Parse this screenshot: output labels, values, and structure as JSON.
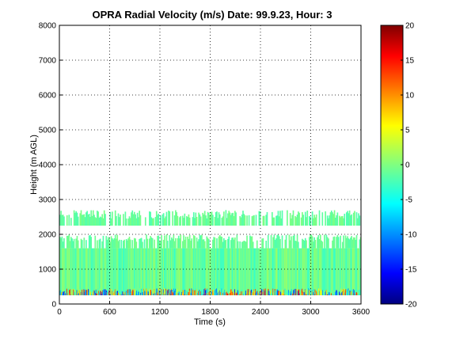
{
  "chart_data": {
    "type": "heatmap",
    "title": "OPRA Radial Velocity (m/s)  Date: 99.9.23, Hour: 3",
    "xlabel": "Time (s)",
    "ylabel": "Height (m AGL)",
    "xlim": [
      0,
      3600
    ],
    "ylim": [
      0,
      8000
    ],
    "xticks": [
      "0",
      "600",
      "1200",
      "1800",
      "2400",
      "3000",
      "3600"
    ],
    "yticks": [
      "0",
      "1000",
      "2000",
      "3000",
      "4000",
      "5000",
      "6000",
      "7000",
      "8000"
    ],
    "grid": true,
    "colormap": "jet",
    "clim": [
      -20,
      20
    ],
    "colorbar_ticks": [
      "20",
      "15",
      "10",
      "5",
      "0",
      "-5",
      "-10",
      "-15",
      "-20"
    ],
    "layers": [
      {
        "from_height": 250,
        "to_height": 1600,
        "x_start": 0,
        "x_end": 3600,
        "velocity_range": [
          -3,
          1
        ]
      },
      {
        "from_height": 1600,
        "to_height": 2000,
        "x_start": 0,
        "x_end": 3600,
        "coverage": "intermittent",
        "velocity_range": [
          -2,
          0
        ]
      },
      {
        "from_height": 2250,
        "to_height": 2700,
        "x_start": 0,
        "x_end": 3600,
        "coverage": "intermittent",
        "velocity_range": [
          -2,
          0
        ]
      }
    ],
    "note_values": "Near-surface gates (250-700 m) show mixed values spanning roughly -15 to +15 m/s"
  }
}
